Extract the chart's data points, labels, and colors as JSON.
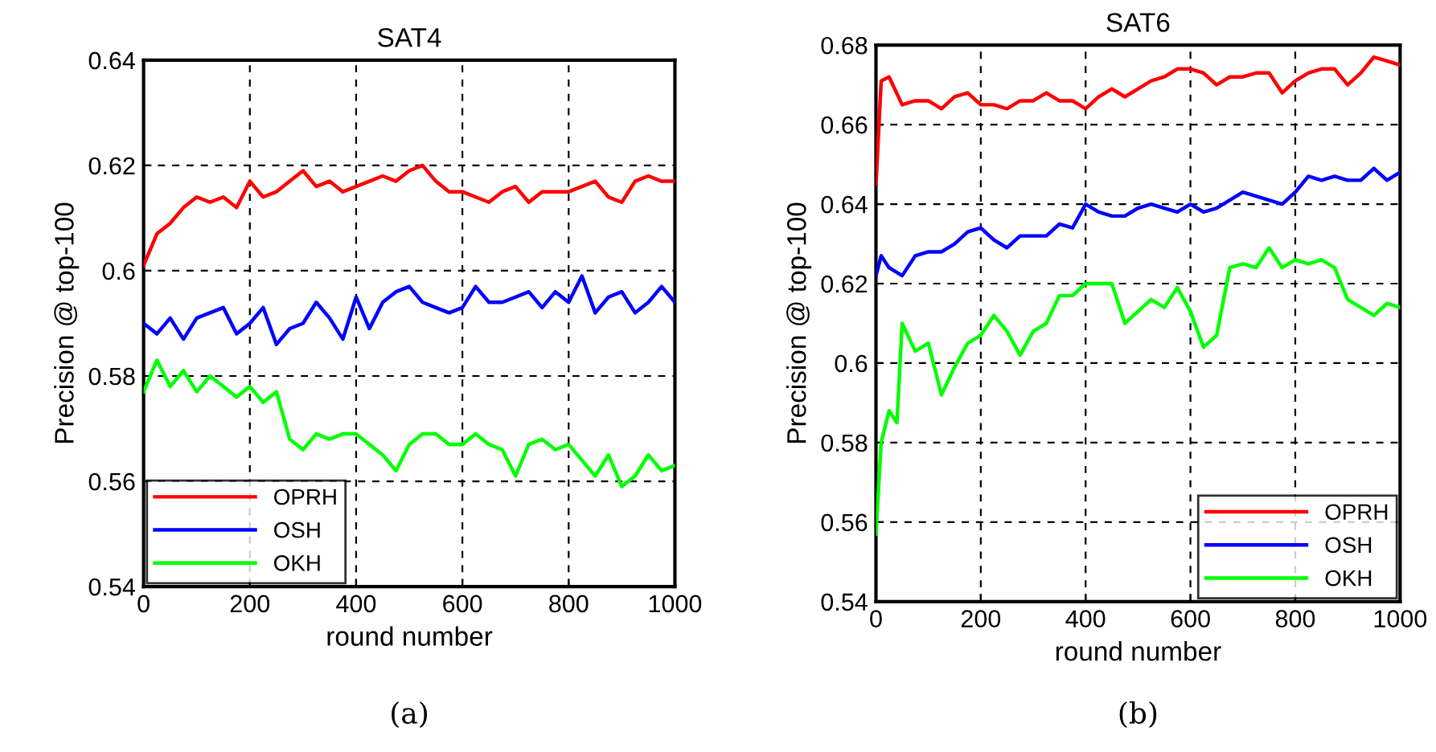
{
  "chart_data": [
    {
      "type": "line",
      "title": "SAT4",
      "xlabel": "round number",
      "ylabel": "Precision @ top-100",
      "annotations": [
        "(a)"
      ],
      "xlim": [
        0,
        1000
      ],
      "xticks": [
        0,
        200,
        400,
        600,
        800,
        1000
      ],
      "ylim": [
        0.54,
        0.64
      ],
      "yticks": [
        0.54,
        0.56,
        0.58,
        {
          "value": 0.6,
          "label": "0.6"
        },
        0.62,
        0.64
      ],
      "grid": true,
      "legend": "bottom left",
      "x": [
        0,
        25,
        50,
        75,
        100,
        125,
        150,
        175,
        200,
        225,
        250,
        275,
        300,
        325,
        350,
        375,
        400,
        425,
        450,
        475,
        500,
        525,
        550,
        575,
        600,
        625,
        650,
        675,
        700,
        725,
        750,
        775,
        800,
        825,
        850,
        875,
        900,
        925,
        950,
        975,
        1000
      ],
      "series": [
        {
          "name": "OPRH",
          "color": "#ff0000",
          "values": [
            0.601,
            0.607,
            0.609,
            0.612,
            0.614,
            0.613,
            0.614,
            0.612,
            0.617,
            0.614,
            0.615,
            0.617,
            0.619,
            0.616,
            0.617,
            0.615,
            0.616,
            0.617,
            0.618,
            0.617,
            0.619,
            0.62,
            0.617,
            0.615,
            0.615,
            0.614,
            0.613,
            0.615,
            0.616,
            0.613,
            0.615,
            0.615,
            0.615,
            0.616,
            0.617,
            0.614,
            0.613,
            0.617,
            0.618,
            0.617,
            0.617
          ]
        },
        {
          "name": "OSH",
          "color": "#0000ff",
          "values": [
            0.59,
            0.588,
            0.591,
            0.587,
            0.591,
            0.592,
            0.593,
            0.588,
            0.59,
            0.593,
            0.586,
            0.589,
            0.59,
            0.594,
            0.591,
            0.587,
            0.595,
            0.589,
            0.594,
            0.596,
            0.597,
            0.594,
            0.593,
            0.592,
            0.593,
            0.597,
            0.594,
            0.594,
            0.595,
            0.596,
            0.593,
            0.596,
            0.594,
            0.599,
            0.592,
            0.595,
            0.596,
            0.592,
            0.594,
            0.597,
            0.594
          ]
        },
        {
          "name": "OKH",
          "color": "#00ff00",
          "values": [
            0.577,
            0.583,
            0.578,
            0.581,
            0.577,
            0.58,
            0.578,
            0.576,
            0.578,
            0.575,
            0.577,
            0.568,
            0.566,
            0.569,
            0.568,
            0.569,
            0.569,
            0.567,
            0.565,
            0.562,
            0.567,
            0.569,
            0.569,
            0.567,
            0.567,
            0.569,
            0.567,
            0.566,
            0.561,
            0.567,
            0.568,
            0.566,
            0.567,
            0.564,
            0.561,
            0.565,
            0.559,
            0.561,
            0.565,
            0.562,
            0.563
          ]
        }
      ]
    },
    {
      "type": "line",
      "title": "SAT6",
      "xlabel": "round number",
      "ylabel": "Precision @ top-100",
      "annotations": [
        "(b)"
      ],
      "xlim": [
        0,
        1000
      ],
      "xticks": [
        0,
        200,
        400,
        600,
        800,
        1000
      ],
      "ylim": [
        0.54,
        0.68
      ],
      "yticks": [
        0.54,
        0.56,
        0.58,
        {
          "value": 0.6,
          "label": "0.6"
        },
        0.62,
        0.64,
        0.66,
        0.68
      ],
      "grid": true,
      "legend": "bottom right",
      "x": [
        0,
        10,
        25,
        50,
        75,
        100,
        125,
        150,
        175,
        200,
        225,
        250,
        275,
        300,
        325,
        350,
        375,
        400,
        425,
        450,
        475,
        500,
        525,
        550,
        575,
        600,
        625,
        650,
        675,
        700,
        725,
        750,
        775,
        800,
        825,
        850,
        875,
        900,
        925,
        950,
        975,
        1000
      ],
      "series": [
        {
          "name": "OPRH",
          "color": "#ff0000",
          "values": [
            0.645,
            0.671,
            0.672,
            0.665,
            0.666,
            0.666,
            0.664,
            0.667,
            0.668,
            0.665,
            0.665,
            0.664,
            0.666,
            0.666,
            0.668,
            0.666,
            0.666,
            0.664,
            0.667,
            0.669,
            0.667,
            0.669,
            0.671,
            0.672,
            0.674,
            0.674,
            0.673,
            0.67,
            0.672,
            0.672,
            0.673,
            0.673,
            0.668,
            0.671,
            0.673,
            0.674,
            0.674,
            0.67,
            0.673,
            0.677,
            0.676,
            0.675
          ]
        },
        {
          "name": "OSH",
          "color": "#0000ff",
          "values": [
            0.622,
            0.627,
            0.624,
            0.622,
            0.627,
            0.628,
            0.628,
            0.63,
            0.633,
            0.634,
            0.631,
            0.629,
            0.632,
            0.632,
            0.632,
            0.635,
            0.634,
            0.64,
            0.638,
            0.637,
            0.637,
            0.639,
            0.64,
            0.639,
            0.638,
            0.64,
            0.638,
            0.639,
            0.641,
            0.643,
            0.642,
            0.641,
            0.64,
            0.643,
            0.647,
            0.646,
            0.647,
            0.646,
            0.646,
            0.649,
            0.646,
            0.648
          ]
        },
        {
          "name": "OKH",
          "color": "#00ff00",
          "x": [
            0,
            10,
            25,
            40,
            50,
            75,
            100,
            125,
            150,
            175,
            200,
            225,
            250,
            275,
            300,
            325,
            350,
            375,
            400,
            425,
            450,
            475,
            500,
            525,
            550,
            575,
            600,
            625,
            650,
            675,
            700,
            725,
            750,
            775,
            800,
            825,
            850,
            875,
            900,
            925,
            950,
            975,
            1000
          ],
          "values": [
            0.557,
            0.58,
            0.588,
            0.585,
            0.61,
            0.603,
            0.605,
            0.592,
            0.599,
            0.605,
            0.607,
            0.612,
            0.608,
            0.602,
            0.608,
            0.61,
            0.617,
            0.617,
            0.62,
            0.62,
            0.62,
            0.61,
            0.613,
            0.616,
            0.614,
            0.619,
            0.613,
            0.604,
            0.607,
            0.624,
            0.625,
            0.624,
            0.629,
            0.624,
            0.626,
            0.625,
            0.626,
            0.624,
            0.616,
            0.614,
            0.612,
            0.615,
            0.614
          ]
        }
      ]
    }
  ]
}
